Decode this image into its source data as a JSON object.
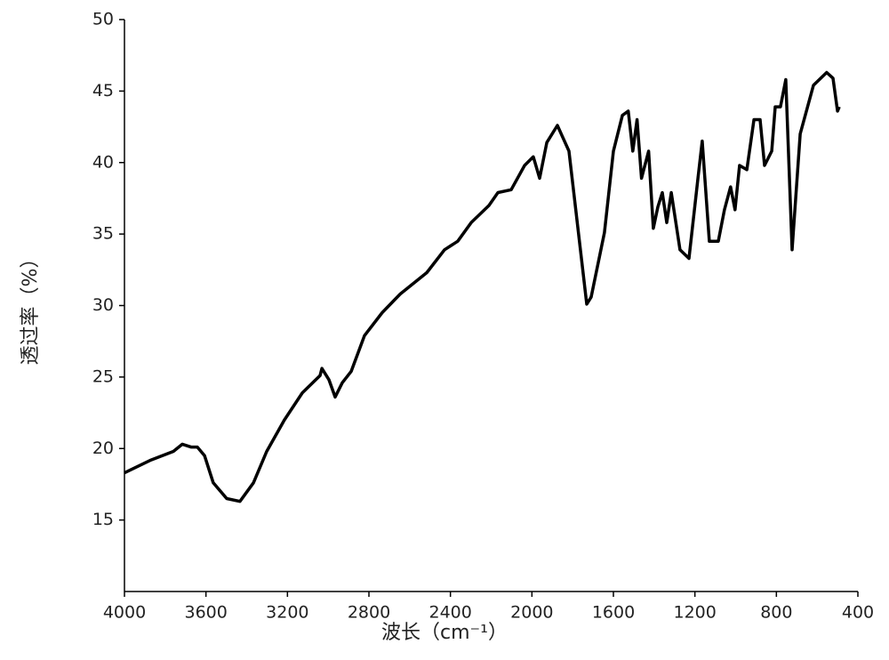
{
  "chart_data": {
    "type": "line",
    "xlabel": "波长（cm⁻¹）",
    "ylabel": "透过率（%）",
    "xlim": [
      4000,
      400
    ],
    "ylim": [
      10,
      50
    ],
    "xticks": [
      4000,
      3600,
      3200,
      2800,
      2400,
      2000,
      1600,
      1200,
      800,
      400
    ],
    "yticks": [
      15,
      20,
      25,
      30,
      35,
      40,
      45,
      50
    ],
    "series": [
      {
        "color": "#000000",
        "x": [
          4000,
          3869,
          3760,
          3716,
          3673,
          3642,
          3607,
          3564,
          3498,
          3433,
          3367,
          3302,
          3215,
          3127,
          3040,
          3031,
          2996,
          2966,
          2931,
          2887,
          2822,
          2735,
          2647,
          2516,
          2429,
          2364,
          2298,
          2211,
          2167,
          2102,
          2036,
          1993,
          1962,
          1927,
          1875,
          1818,
          1731,
          1709,
          1644,
          1600,
          1556,
          1527,
          1505,
          1484,
          1462,
          1427,
          1404,
          1382,
          1360,
          1338,
          1316,
          1273,
          1229,
          1185,
          1164,
          1129,
          1085,
          1055,
          1025,
          1003,
          981,
          945,
          910,
          880,
          858,
          823,
          806,
          780,
          754,
          723,
          683,
          618,
          553,
          522,
          500,
          491
        ],
        "values": [
          18.3,
          19.2,
          19.8,
          20.3,
          20.1,
          20.1,
          19.5,
          17.6,
          16.5,
          16.3,
          17.6,
          19.8,
          22,
          23.9,
          25.1,
          25.6,
          24.8,
          23.6,
          24.6,
          25.4,
          27.9,
          29.5,
          30.8,
          32.3,
          33.9,
          34.5,
          35.8,
          37,
          37.9,
          38.1,
          39.8,
          40.4,
          38.9,
          41.4,
          42.6,
          40.8,
          30.1,
          30.6,
          35.1,
          40.8,
          43.3,
          43.6,
          40.8,
          43,
          38.9,
          40.8,
          35.4,
          36.9,
          37.9,
          35.8,
          37.9,
          33.9,
          33.3,
          38.9,
          41.5,
          34.5,
          34.5,
          36.7,
          38.3,
          36.7,
          39.8,
          39.5,
          43,
          43,
          39.8,
          40.8,
          43.9,
          43.9,
          45.8,
          33.9,
          42,
          45.4,
          46.3,
          45.9,
          43.6,
          43.9
        ]
      }
    ]
  }
}
